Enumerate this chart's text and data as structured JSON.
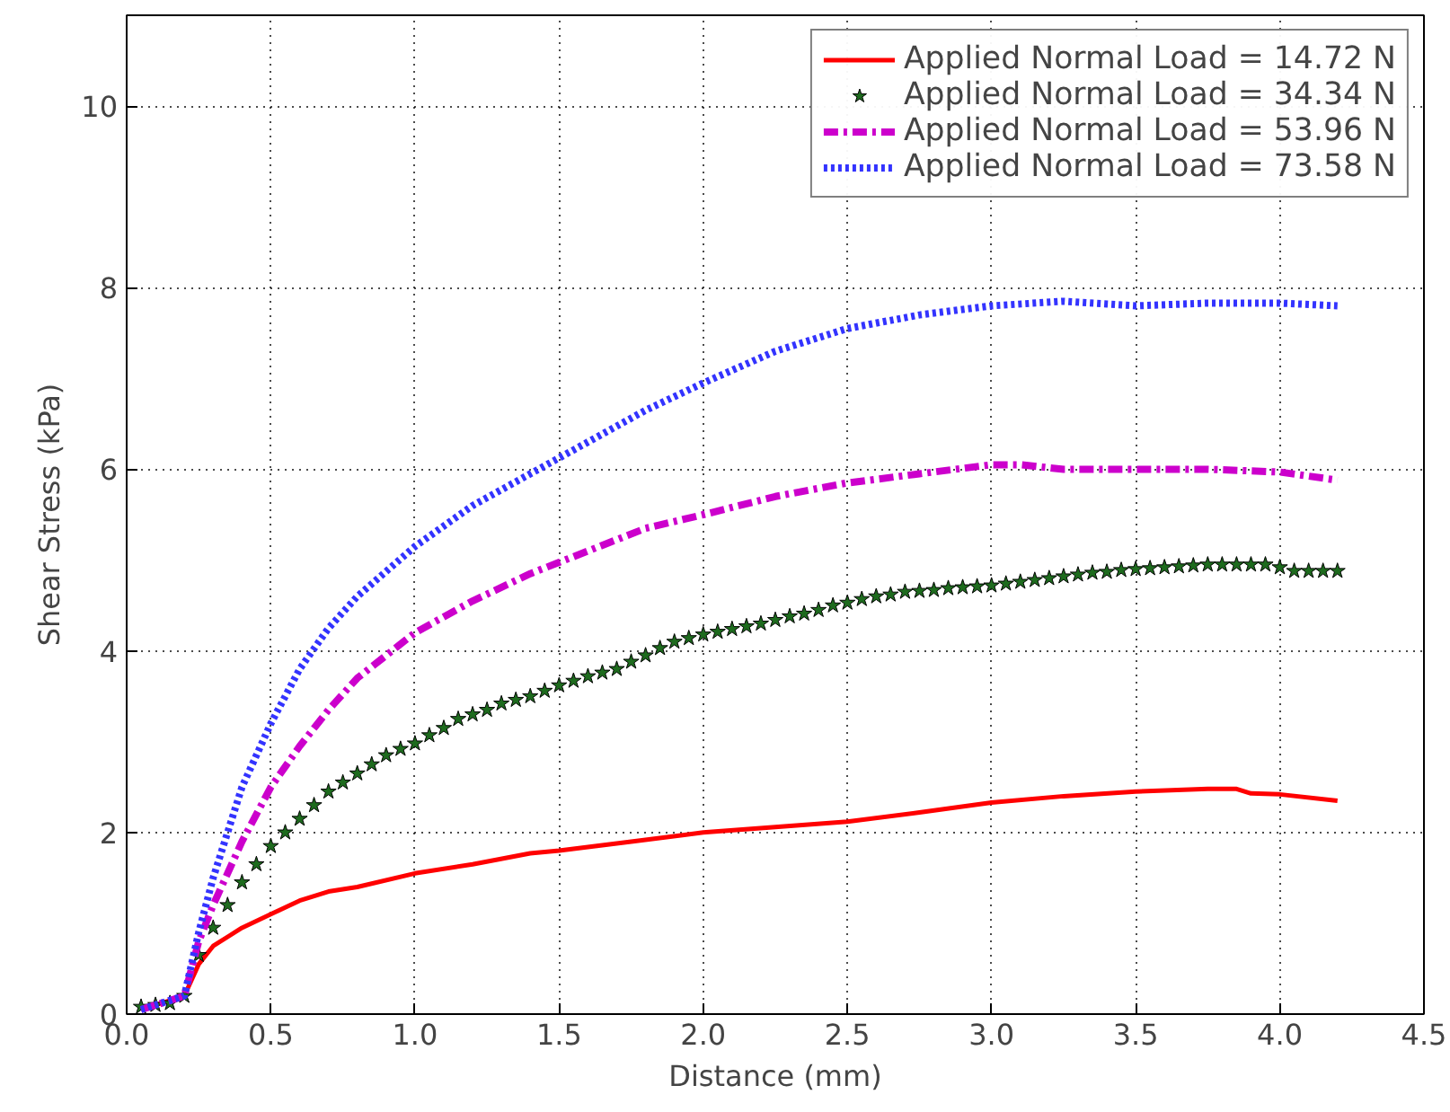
{
  "chart_data": {
    "type": "line",
    "xlabel": "Distance (mm)",
    "ylabel": "Shear Stress (kPa)",
    "xlim": [
      0,
      4.5
    ],
    "ylim": [
      0,
      11
    ],
    "xticks": [
      {
        "value": 0,
        "label": "0.0"
      },
      {
        "value": 0.5,
        "label": "0.5"
      },
      {
        "value": 1,
        "label": "1.0"
      },
      {
        "value": 1.5,
        "label": "1.5"
      },
      {
        "value": 2,
        "label": "2.0"
      },
      {
        "value": 2.5,
        "label": "2.5"
      },
      {
        "value": 3,
        "label": "3.0"
      },
      {
        "value": 3.5,
        "label": "3.5"
      },
      {
        "value": 4,
        "label": "4.0"
      },
      {
        "value": 4.5,
        "label": "4.5"
      }
    ],
    "yticks": [
      0,
      2,
      4,
      6,
      8,
      10
    ],
    "grid": true,
    "legend": "top right",
    "series": [
      {
        "name": "Applied Normal Load = 14.72 N",
        "color": "#ff0000",
        "line_style": "solid",
        "x": [
          0.05,
          0.2,
          0.25,
          0.3,
          0.4,
          0.5,
          0.6,
          0.7,
          0.8,
          1.0,
          1.2,
          1.4,
          1.5,
          1.75,
          2.0,
          2.25,
          2.5,
          2.75,
          3.0,
          3.25,
          3.5,
          3.75,
          3.85,
          3.9,
          4.0,
          4.2
        ],
        "values": [
          0.05,
          0.2,
          0.55,
          0.75,
          0.95,
          1.1,
          1.25,
          1.35,
          1.4,
          1.55,
          1.65,
          1.77,
          1.8,
          1.9,
          2.0,
          2.06,
          2.12,
          2.22,
          2.33,
          2.4,
          2.45,
          2.48,
          2.48,
          2.43,
          2.42,
          2.35
        ]
      },
      {
        "name": "Applied Normal Load = 34.34 N",
        "color": "#1e6b1e",
        "type": "scatter",
        "marker": "star",
        "x": [
          0.05,
          0.1,
          0.15,
          0.2,
          0.25,
          0.3,
          0.35,
          0.4,
          0.45,
          0.5,
          0.55,
          0.6,
          0.65,
          0.7,
          0.75,
          0.8,
          0.85,
          0.9,
          0.95,
          1.0,
          1.05,
          1.1,
          1.15,
          1.2,
          1.25,
          1.3,
          1.35,
          1.4,
          1.45,
          1.5,
          1.55,
          1.6,
          1.65,
          1.7,
          1.75,
          1.8,
          1.85,
          1.9,
          1.95,
          2.0,
          2.05,
          2.1,
          2.15,
          2.2,
          2.25,
          2.3,
          2.35,
          2.4,
          2.45,
          2.5,
          2.55,
          2.6,
          2.65,
          2.7,
          2.75,
          2.8,
          2.85,
          2.9,
          2.95,
          3.0,
          3.05,
          3.1,
          3.15,
          3.2,
          3.25,
          3.3,
          3.35,
          3.4,
          3.45,
          3.5,
          3.55,
          3.6,
          3.65,
          3.7,
          3.75,
          3.8,
          3.85,
          3.9,
          3.95,
          4.0,
          4.05,
          4.1,
          4.15,
          4.2
        ],
        "values": [
          0.08,
          0.1,
          0.12,
          0.2,
          0.65,
          0.95,
          1.2,
          1.45,
          1.65,
          1.85,
          2.0,
          2.15,
          2.3,
          2.45,
          2.55,
          2.65,
          2.75,
          2.85,
          2.92,
          2.98,
          3.07,
          3.15,
          3.25,
          3.3,
          3.35,
          3.42,
          3.46,
          3.5,
          3.56,
          3.62,
          3.67,
          3.72,
          3.76,
          3.8,
          3.88,
          3.95,
          4.03,
          4.1,
          4.14,
          4.18,
          4.21,
          4.24,
          4.27,
          4.3,
          4.34,
          4.38,
          4.41,
          4.45,
          4.5,
          4.53,
          4.57,
          4.6,
          4.62,
          4.65,
          4.66,
          4.67,
          4.69,
          4.7,
          4.71,
          4.72,
          4.74,
          4.76,
          4.78,
          4.8,
          4.82,
          4.84,
          4.86,
          4.87,
          4.89,
          4.9,
          4.91,
          4.92,
          4.93,
          4.94,
          4.95,
          4.95,
          4.95,
          4.95,
          4.95,
          4.92,
          4.88,
          4.88,
          4.88,
          4.88
        ]
      },
      {
        "name": "Applied Normal Load = 53.96 N",
        "color": "#cc00cc",
        "line_style": "dashdot",
        "x": [
          0.05,
          0.2,
          0.25,
          0.3,
          0.4,
          0.5,
          0.6,
          0.7,
          0.8,
          1.0,
          1.2,
          1.4,
          1.6,
          1.8,
          2.0,
          2.25,
          2.5,
          2.75,
          3.0,
          3.1,
          3.25,
          3.5,
          3.75,
          4.0,
          4.2
        ],
        "values": [
          0.05,
          0.2,
          0.8,
          1.2,
          1.9,
          2.5,
          2.95,
          3.35,
          3.7,
          4.2,
          4.55,
          4.85,
          5.1,
          5.35,
          5.5,
          5.7,
          5.85,
          5.95,
          6.05,
          6.05,
          6.0,
          6.0,
          6.0,
          5.97,
          5.88
        ]
      },
      {
        "name": "Applied Normal Load = 73.58 N",
        "color": "#3333ff",
        "line_style": "dotted",
        "x": [
          0.05,
          0.2,
          0.25,
          0.3,
          0.4,
          0.5,
          0.6,
          0.7,
          0.8,
          1.0,
          1.2,
          1.4,
          1.6,
          1.8,
          2.0,
          2.25,
          2.5,
          2.75,
          3.0,
          3.25,
          3.4,
          3.5,
          3.75,
          4.0,
          4.2
        ],
        "values": [
          0.05,
          0.2,
          0.9,
          1.5,
          2.5,
          3.2,
          3.8,
          4.25,
          4.6,
          5.15,
          5.6,
          5.95,
          6.3,
          6.65,
          6.95,
          7.3,
          7.55,
          7.7,
          7.8,
          7.85,
          7.82,
          7.8,
          7.83,
          7.83,
          7.8
        ]
      }
    ]
  }
}
